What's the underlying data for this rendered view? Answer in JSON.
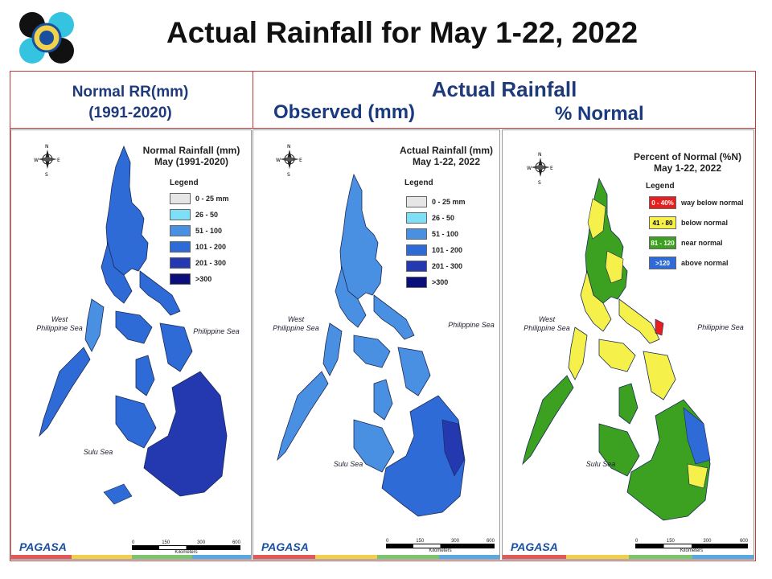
{
  "page": {
    "title": "Actual Rainfall for May 1-22, 2022"
  },
  "headers": {
    "normal_line1": "Normal RR(mm)",
    "normal_line2": "(1991-2020)",
    "actual": "Actual Rainfall",
    "observed": "Observed (mm)",
    "pct_normal": "% Normal"
  },
  "maps": [
    {
      "title_line1": "Normal Rainfall (mm)",
      "title_line2": "May (1991-2020)",
      "legend_title": "Legend",
      "legend": [
        {
          "label": "0 - 25 mm",
          "color": "#e6e6e6"
        },
        {
          "label": "26 - 50",
          "color": "#7ee0f7"
        },
        {
          "label": "51 - 100",
          "color": "#4a90e2"
        },
        {
          "label": "101 - 200",
          "color": "#2f6bd6"
        },
        {
          "label": "201 - 300",
          "color": "#2438b0"
        },
        {
          "label": ">300",
          "color": "#0a0f7a"
        }
      ],
      "seas": {
        "west_line1": "West",
        "west_line2": "Philippine Sea",
        "east": "Philippine Sea",
        "sulu": "Sulu Sea"
      },
      "scale": {
        "ticks": [
          "0",
          "150",
          "300",
          "600"
        ],
        "unit": "Kilometers"
      },
      "logo": "PAGASA"
    },
    {
      "title_line1": "Actual Rainfall (mm)",
      "title_line2": "May 1-22, 2022",
      "legend_title": "Legend",
      "legend": [
        {
          "label": "0 - 25 mm",
          "color": "#e6e6e6"
        },
        {
          "label": "26 - 50",
          "color": "#7ee0f7"
        },
        {
          "label": "51 - 100",
          "color": "#4a90e2"
        },
        {
          "label": "101 - 200",
          "color": "#2f6bd6"
        },
        {
          "label": "201 - 300",
          "color": "#2438b0"
        },
        {
          "label": ">300",
          "color": "#0a0f7a"
        }
      ],
      "seas": {
        "west_line1": "West",
        "west_line2": "Philippine Sea",
        "east": "Philippine Sea",
        "sulu": "Sulu Sea"
      },
      "scale": {
        "ticks": [
          "0",
          "150",
          "300",
          "600"
        ],
        "unit": "Kilometers"
      },
      "logo": "PAGASA"
    },
    {
      "title_line1": "Percent of Normal (%N)",
      "title_line2": "May 1-22, 2022",
      "legend_title": "Legend",
      "legend": [
        {
          "range": "0 - 40%",
          "label": "way below normal",
          "color": "#e61e1e"
        },
        {
          "range": "41 - 80",
          "label": "below normal",
          "color": "#f5f04a"
        },
        {
          "range": "81 - 120",
          "label": "near normal",
          "color": "#3ca020"
        },
        {
          "range": ">120",
          "label": "above normal",
          "color": "#2f6bd6"
        }
      ],
      "seas": {
        "west_line1": "West",
        "west_line2": "Philippine Sea",
        "east": "Philippine Sea",
        "sulu": "Sulu Sea"
      },
      "scale": {
        "ticks": [
          "0",
          "150",
          "300",
          "600"
        ],
        "unit": "Kilometers"
      },
      "logo": "PAGASA"
    }
  ],
  "colors": {
    "frame": "#c43a3a",
    "header_text": "#1f3a7a",
    "stripe": [
      "#e05a5a",
      "#f2cf4a",
      "#7cc46e",
      "#5aa8e0"
    ]
  }
}
